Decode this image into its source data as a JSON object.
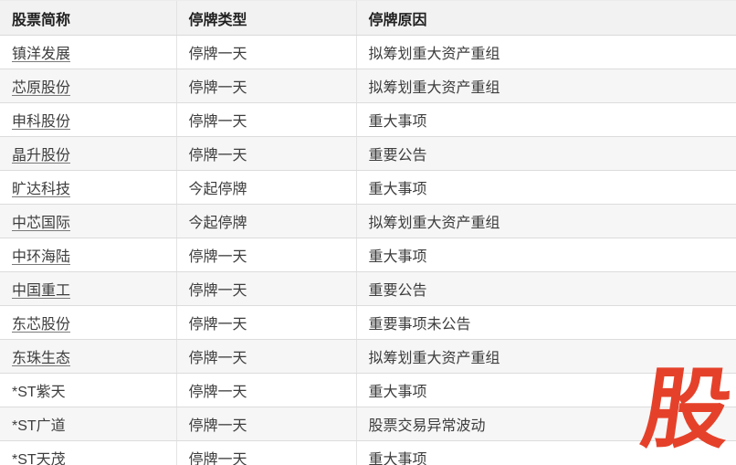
{
  "table": {
    "columns": [
      {
        "label": "股票简称"
      },
      {
        "label": "停牌类型"
      },
      {
        "label": "停牌原因"
      }
    ],
    "rows": [
      {
        "prefix": "",
        "name": "镇洋发展",
        "type": "停牌一天",
        "reason": "拟筹划重大资产重组"
      },
      {
        "prefix": "",
        "name": "芯原股份",
        "type": "停牌一天",
        "reason": "拟筹划重大资产重组"
      },
      {
        "prefix": "",
        "name": "申科股份",
        "type": "停牌一天",
        "reason": "重大事项"
      },
      {
        "prefix": "",
        "name": "晶升股份",
        "type": "停牌一天",
        "reason": "重要公告"
      },
      {
        "prefix": "",
        "name": "旷达科技",
        "type": "今起停牌",
        "reason": "重大事项"
      },
      {
        "prefix": "",
        "name": "中芯国际",
        "type": "今起停牌",
        "reason": "拟筹划重大资产重组"
      },
      {
        "prefix": "",
        "name": "中环海陆",
        "type": "停牌一天",
        "reason": "重大事项"
      },
      {
        "prefix": "",
        "name": "中国重工",
        "type": "停牌一天",
        "reason": "重要公告"
      },
      {
        "prefix": "",
        "name": "东芯股份",
        "type": "停牌一天",
        "reason": "重要事项未公告"
      },
      {
        "prefix": "",
        "name": "东珠生态",
        "type": "停牌一天",
        "reason": "拟筹划重大资产重组"
      },
      {
        "prefix": "*ST紫天",
        "name": "",
        "type": "停牌一天",
        "reason": "重大事项"
      },
      {
        "prefix": "*ST广道",
        "name": "",
        "type": "停牌一天",
        "reason": "股票交易异常波动"
      },
      {
        "prefix": "*ST",
        "name": "天茂",
        "type": "停牌一天",
        "reason": "重大事项"
      }
    ]
  },
  "watermark": {
    "text": "股",
    "color": "#e5412a"
  },
  "colors": {
    "accent_red": "#e5412a",
    "header_bg": "#f2f2f2",
    "stripe_bg": "#f6f6f6",
    "border": "#dcdcdc",
    "text": "#3d3d3d",
    "header_text": "#1f1f1f"
  }
}
